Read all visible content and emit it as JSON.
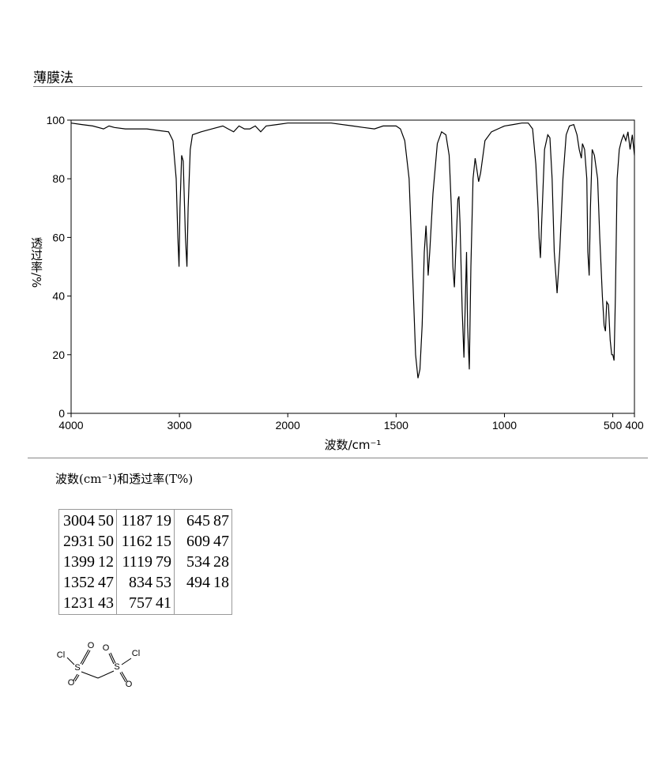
{
  "header": {
    "title": "薄膜法"
  },
  "chart_data": {
    "type": "line",
    "x_label": "波数/cm⁻¹",
    "y_label": "透过率/%",
    "xlim": [
      4000,
      400
    ],
    "ylim": [
      0,
      100
    ],
    "xticks": [
      4000,
      3000,
      2000,
      1500,
      1000,
      500,
      400
    ],
    "yticks": [
      0,
      20,
      40,
      60,
      80,
      100
    ],
    "x_scale_break": 2000,
    "x": [
      4000,
      3900,
      3800,
      3700,
      3650,
      3600,
      3500,
      3300,
      3200,
      3100,
      3060,
      3030,
      3015,
      3004,
      2995,
      2980,
      2965,
      2945,
      2931,
      2920,
      2900,
      2880,
      2800,
      2700,
      2600,
      2550,
      2500,
      2450,
      2400,
      2350,
      2300,
      2250,
      2200,
      2100,
      2000,
      1900,
      1800,
      1700,
      1650,
      1600,
      1560,
      1500,
      1480,
      1460,
      1440,
      1420,
      1410,
      1399,
      1390,
      1380,
      1370,
      1362,
      1356,
      1352,
      1345,
      1330,
      1310,
      1290,
      1270,
      1255,
      1245,
      1238,
      1231,
      1225,
      1215,
      1210,
      1205,
      1195,
      1187,
      1180,
      1175,
      1170,
      1162,
      1155,
      1145,
      1135,
      1125,
      1119,
      1110,
      1090,
      1060,
      1000,
      960,
      920,
      890,
      870,
      855,
      845,
      840,
      834,
      828,
      815,
      800,
      790,
      780,
      770,
      757,
      745,
      730,
      715,
      700,
      680,
      665,
      655,
      645,
      640,
      630,
      620,
      615,
      609,
      603,
      595,
      585,
      570,
      560,
      548,
      540,
      534,
      528,
      520,
      512,
      505,
      500,
      494,
      488,
      480,
      470,
      460,
      450,
      440,
      430,
      420,
      410,
      400
    ],
    "series": [
      {
        "color": "#000000",
        "values": [
          99,
          98.5,
          98,
          97,
          98,
          97.5,
          97,
          97,
          96.5,
          96,
          93,
          80,
          60,
          50,
          70,
          88,
          86,
          60,
          50,
          70,
          90,
          95,
          96,
          97,
          98,
          97,
          96,
          98,
          97,
          97,
          98,
          96,
          98,
          98.5,
          99,
          99,
          99,
          98,
          97.5,
          97,
          98,
          98,
          97,
          93,
          80,
          40,
          20,
          12,
          15,
          30,
          55,
          64,
          55,
          47,
          55,
          75,
          92,
          96,
          95,
          88,
          70,
          50,
          43,
          55,
          73,
          74,
          65,
          35,
          19,
          40,
          55,
          30,
          15,
          50,
          80,
          87,
          82,
          79,
          82,
          93,
          96,
          98,
          98.5,
          99,
          99,
          97,
          85,
          70,
          60,
          53,
          65,
          90,
          95,
          94,
          80,
          55,
          41,
          55,
          80,
          95,
          98,
          98.5,
          95,
          90,
          87,
          92,
          90,
          80,
          55,
          47,
          70,
          90,
          88,
          80,
          60,
          40,
          30,
          28,
          38,
          37,
          25,
          20,
          20,
          18,
          40,
          80,
          90,
          93,
          95,
          93,
          96,
          90,
          95,
          88
        ]
      }
    ]
  },
  "caption": "波数(cm⁻¹)和透过率(T%)",
  "peak_table": {
    "columns": [
      [
        [
          3004,
          50
        ],
        [
          2931,
          50
        ],
        [
          1399,
          12
        ],
        [
          1352,
          47
        ],
        [
          1231,
          43
        ]
      ],
      [
        [
          1187,
          19
        ],
        [
          1162,
          15
        ],
        [
          1119,
          79
        ],
        [
          834,
          53
        ],
        [
          757,
          41
        ]
      ],
      [
        [
          645,
          87
        ],
        [
          609,
          47
        ],
        [
          534,
          28
        ],
        [
          494,
          18
        ]
      ]
    ]
  },
  "structure": {
    "atoms": [
      "Cl",
      "O",
      "S",
      "O",
      "O",
      "S",
      "O",
      "Cl"
    ]
  }
}
